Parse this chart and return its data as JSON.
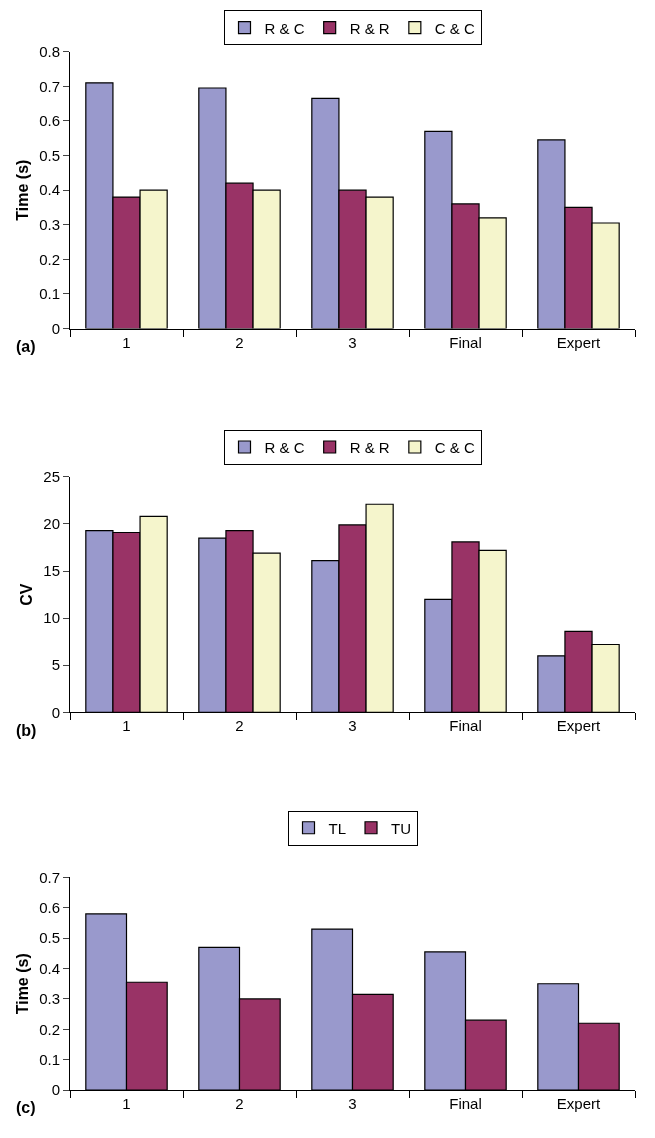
{
  "chart_data": [
    {
      "type": "bar",
      "categories": [
        "1",
        "2",
        "3",
        "Final",
        "Expert"
      ],
      "ylabel": "Time (s)",
      "ylim": [
        0,
        0.8
      ],
      "yticks": [
        0,
        0.1,
        0.2,
        0.3,
        0.4,
        0.5,
        0.6,
        0.7,
        0.8
      ],
      "legend": "top",
      "grid": false,
      "annotations": [
        "(a)"
      ],
      "series": [
        {
          "name": "R & C",
          "color": "#9999cc",
          "values": [
            0.71,
            0.695,
            0.665,
            0.57,
            0.545
          ]
        },
        {
          "name": "R & R",
          "color": "#993366",
          "values": [
            0.38,
            0.42,
            0.4,
            0.36,
            0.35
          ]
        },
        {
          "name": "C & C",
          "color": "#f5f5cc",
          "values": [
            0.4,
            0.4,
            0.38,
            0.32,
            0.305
          ]
        }
      ]
    },
    {
      "type": "bar",
      "categories": [
        "1",
        "2",
        "3",
        "Final",
        "Expert"
      ],
      "ylabel": "CV",
      "ylim": [
        0,
        25
      ],
      "yticks": [
        0,
        5,
        10,
        15,
        20,
        25
      ],
      "legend": "top",
      "grid": false,
      "annotations": [
        "(b)"
      ],
      "series": [
        {
          "name": "R & C",
          "color": "#9999cc",
          "values": [
            19.3,
            18.5,
            16.1,
            12,
            6
          ]
        },
        {
          "name": "R & R",
          "color": "#993366",
          "values": [
            19.1,
            19.3,
            19.9,
            18.1,
            8.6
          ]
        },
        {
          "name": "C & C",
          "color": "#f5f5cc",
          "values": [
            20.8,
            16.9,
            22.1,
            17.2,
            7.2
          ]
        }
      ]
    },
    {
      "type": "bar",
      "categories": [
        "1",
        "2",
        "3",
        "Final",
        "Expert"
      ],
      "ylabel": "Time (s)",
      "ylim": [
        0,
        0.7
      ],
      "yticks": [
        0,
        0.1,
        0.2,
        0.3,
        0.4,
        0.5,
        0.6,
        0.7
      ],
      "legend": "top",
      "grid": false,
      "annotations": [
        "(c)"
      ],
      "series": [
        {
          "name": "TL",
          "color": "#9999cc",
          "values": [
            0.58,
            0.47,
            0.53,
            0.455,
            0.35
          ]
        },
        {
          "name": "TU",
          "color": "#993366",
          "values": [
            0.355,
            0.3,
            0.315,
            0.23,
            0.22
          ]
        }
      ]
    }
  ]
}
